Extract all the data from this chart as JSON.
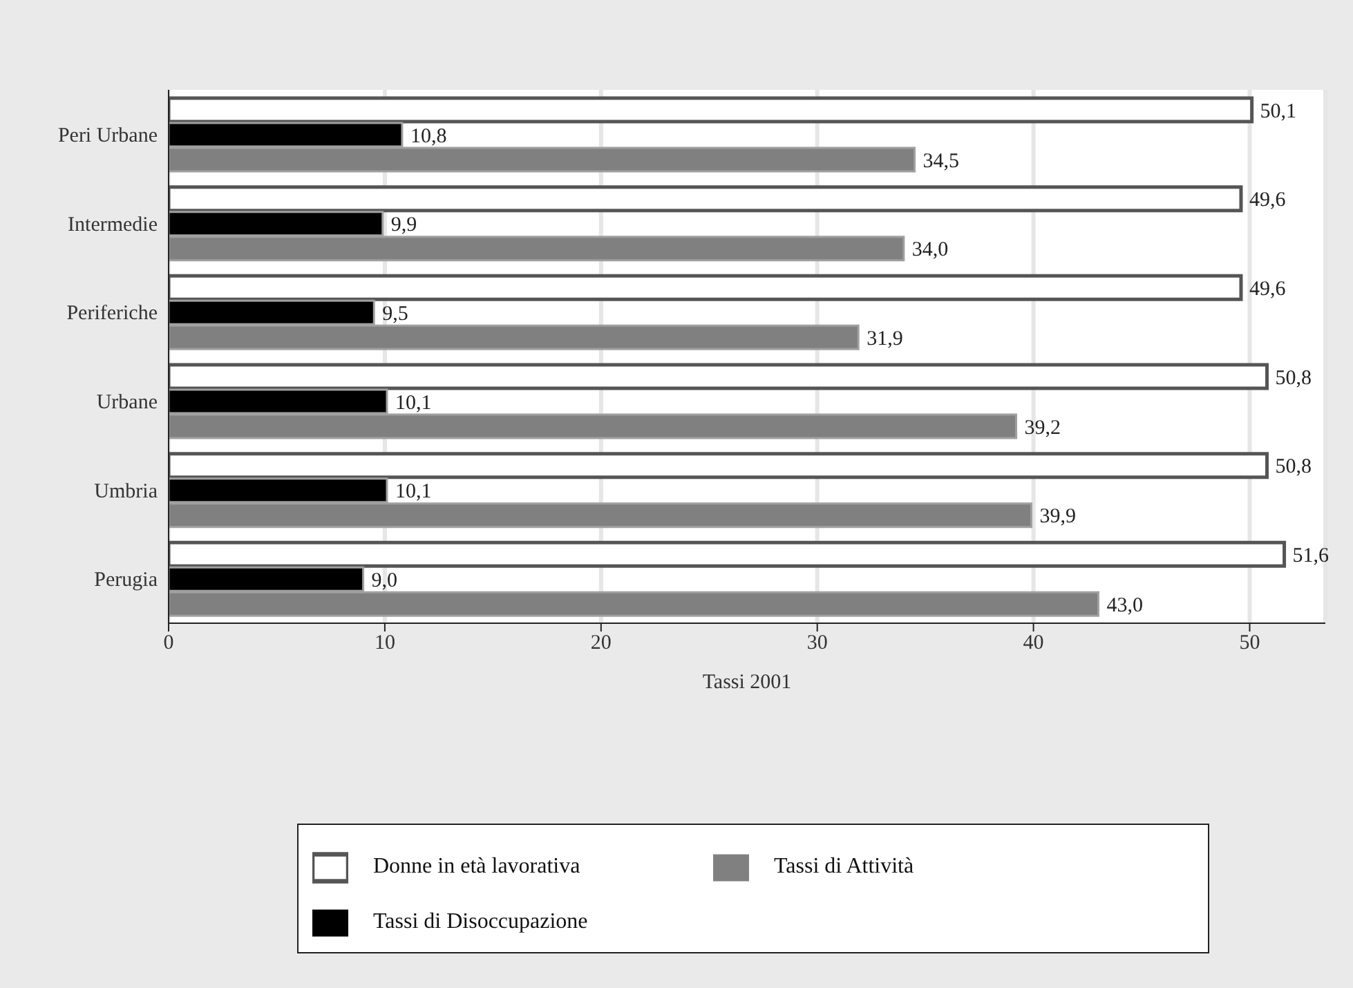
{
  "chart_data": {
    "type": "bar",
    "orientation": "horizontal",
    "xlabel": "Tassi 2001",
    "categories": [
      "Peri Urbane",
      "Intermedie",
      "Periferiche",
      "Urbane",
      "Umbria",
      "Perugia"
    ],
    "series": [
      {
        "name": "Donne in età lavorativa",
        "color": "#ffffff",
        "values": [
          50.1,
          49.6,
          49.6,
          50.8,
          50.8,
          51.6
        ],
        "value_labels": [
          "50,1",
          "49,6",
          "49,6",
          "50,8",
          "50,8",
          "51,6"
        ]
      },
      {
        "name": "Tassi di Disoccupazione",
        "color": "#000000",
        "values": [
          10.8,
          9.9,
          9.5,
          10.1,
          10.1,
          9.0
        ],
        "value_labels": [
          "10,8",
          "9,9",
          "9,5",
          "10,1",
          "10,1",
          "9,0"
        ]
      },
      {
        "name": "Tassi di Attività",
        "color": "#808080",
        "values": [
          34.5,
          34.0,
          31.9,
          39.2,
          39.9,
          43.0
        ],
        "value_labels": [
          "34,5",
          "34,0",
          "31,9",
          "39,2",
          "39,9",
          "43,0"
        ]
      }
    ],
    "xlim": [
      0,
      53.5
    ],
    "xticks": [
      0,
      10,
      20,
      30,
      40,
      50
    ],
    "grid": "x",
    "legend": "bottom"
  }
}
